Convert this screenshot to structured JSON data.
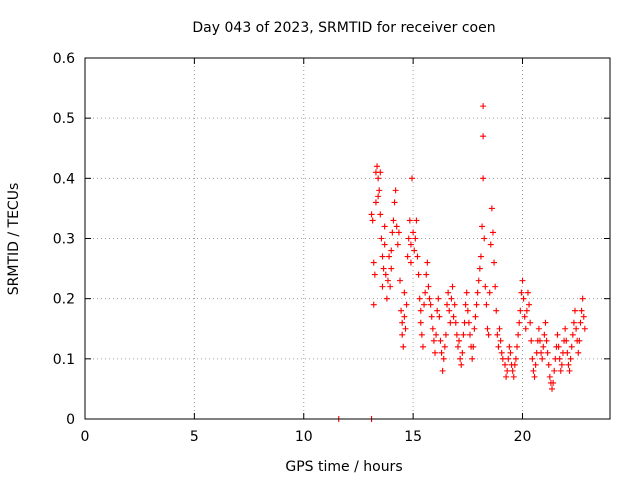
{
  "chart_data": {
    "type": "scatter",
    "title": "Day 043 of 2023, SRMTID for receiver coen",
    "xlabel": "GPS time / hours",
    "ylabel": "SRMTID / TECUs",
    "xlim": [
      0,
      24
    ],
    "ylim": [
      0,
      0.6
    ],
    "xticks": [
      0,
      5,
      10,
      15,
      20
    ],
    "xtick_labels": [
      "0",
      "5",
      "10",
      "15",
      "20"
    ],
    "yticks": [
      0,
      0.1,
      0.2,
      0.3,
      0.4,
      0.5,
      0.6
    ],
    "ytick_labels": [
      "0",
      "0.1",
      "0.2",
      "0.3",
      "0.4",
      "0.5",
      "0.6"
    ],
    "grid": true,
    "marker": "+",
    "series": [
      {
        "name": "SRMTID",
        "color": "#ff0000",
        "points": [
          [
            11.6,
            0.0
          ],
          [
            13.1,
            0.0
          ],
          [
            13.1,
            0.34
          ],
          [
            13.15,
            0.33
          ],
          [
            13.2,
            0.26
          ],
          [
            13.2,
            0.19
          ],
          [
            13.25,
            0.24
          ],
          [
            13.3,
            0.36
          ],
          [
            13.3,
            0.41
          ],
          [
            13.35,
            0.42
          ],
          [
            13.4,
            0.4
          ],
          [
            13.4,
            0.37
          ],
          [
            13.45,
            0.38
          ],
          [
            13.5,
            0.41
          ],
          [
            13.5,
            0.34
          ],
          [
            13.55,
            0.3
          ],
          [
            13.6,
            0.27
          ],
          [
            13.6,
            0.22
          ],
          [
            13.65,
            0.25
          ],
          [
            13.7,
            0.29
          ],
          [
            13.7,
            0.32
          ],
          [
            13.75,
            0.24
          ],
          [
            13.8,
            0.2
          ],
          [
            13.85,
            0.23
          ],
          [
            13.9,
            0.27
          ],
          [
            13.95,
            0.22
          ],
          [
            14.0,
            0.28
          ],
          [
            14.0,
            0.25
          ],
          [
            14.05,
            0.31
          ],
          [
            14.1,
            0.33
          ],
          [
            14.15,
            0.36
          ],
          [
            14.2,
            0.38
          ],
          [
            14.25,
            0.32
          ],
          [
            14.3,
            0.29
          ],
          [
            14.35,
            0.31
          ],
          [
            14.4,
            0.23
          ],
          [
            14.45,
            0.18
          ],
          [
            14.5,
            0.16
          ],
          [
            14.5,
            0.14
          ],
          [
            14.55,
            0.12
          ],
          [
            14.6,
            0.17
          ],
          [
            14.6,
            0.21
          ],
          [
            14.65,
            0.15
          ],
          [
            14.7,
            0.19
          ],
          [
            14.75,
            0.27
          ],
          [
            14.8,
            0.3
          ],
          [
            14.85,
            0.33
          ],
          [
            14.9,
            0.29
          ],
          [
            14.9,
            0.26
          ],
          [
            14.95,
            0.4
          ],
          [
            15.0,
            0.31
          ],
          [
            15.05,
            0.28
          ],
          [
            15.1,
            0.3
          ],
          [
            15.15,
            0.33
          ],
          [
            15.2,
            0.27
          ],
          [
            15.25,
            0.24
          ],
          [
            15.3,
            0.2
          ],
          [
            15.35,
            0.18
          ],
          [
            15.35,
            0.16
          ],
          [
            15.4,
            0.14
          ],
          [
            15.45,
            0.12
          ],
          [
            15.5,
            0.19
          ],
          [
            15.55,
            0.21
          ],
          [
            15.6,
            0.24
          ],
          [
            15.65,
            0.26
          ],
          [
            15.7,
            0.22
          ],
          [
            15.75,
            0.2
          ],
          [
            15.8,
            0.19
          ],
          [
            15.85,
            0.17
          ],
          [
            15.9,
            0.15
          ],
          [
            15.95,
            0.13
          ],
          [
            16.0,
            0.11
          ],
          [
            16.05,
            0.14
          ],
          [
            16.1,
            0.18
          ],
          [
            16.15,
            0.2
          ],
          [
            16.2,
            0.17
          ],
          [
            16.25,
            0.13
          ],
          [
            16.3,
            0.11
          ],
          [
            16.35,
            0.08
          ],
          [
            16.4,
            0.1
          ],
          [
            16.45,
            0.12
          ],
          [
            16.5,
            0.14
          ],
          [
            16.55,
            0.19
          ],
          [
            16.6,
            0.21
          ],
          [
            16.65,
            0.18
          ],
          [
            16.7,
            0.16
          ],
          [
            16.75,
            0.2
          ],
          [
            16.8,
            0.22
          ],
          [
            16.85,
            0.17
          ],
          [
            16.9,
            0.19
          ],
          [
            16.95,
            0.16
          ],
          [
            17.0,
            0.14
          ],
          [
            17.05,
            0.12
          ],
          [
            17.1,
            0.13
          ],
          [
            17.15,
            0.1
          ],
          [
            17.2,
            0.09
          ],
          [
            17.25,
            0.11
          ],
          [
            17.3,
            0.14
          ],
          [
            17.35,
            0.16
          ],
          [
            17.4,
            0.19
          ],
          [
            17.45,
            0.21
          ],
          [
            17.5,
            0.18
          ],
          [
            17.55,
            0.16
          ],
          [
            17.6,
            0.14
          ],
          [
            17.65,
            0.12
          ],
          [
            17.7,
            0.1
          ],
          [
            17.75,
            0.12
          ],
          [
            17.8,
            0.15
          ],
          [
            17.85,
            0.17
          ],
          [
            17.9,
            0.19
          ],
          [
            17.95,
            0.21
          ],
          [
            18.0,
            0.23
          ],
          [
            18.05,
            0.25
          ],
          [
            18.1,
            0.27
          ],
          [
            18.15,
            0.32
          ],
          [
            18.2,
            0.4
          ],
          [
            18.2,
            0.47
          ],
          [
            18.2,
            0.52
          ],
          [
            18.25,
            0.3
          ],
          [
            18.3,
            0.22
          ],
          [
            18.35,
            0.19
          ],
          [
            18.4,
            0.15
          ],
          [
            18.45,
            0.14
          ],
          [
            18.5,
            0.21
          ],
          [
            18.55,
            0.29
          ],
          [
            18.6,
            0.35
          ],
          [
            18.65,
            0.31
          ],
          [
            18.7,
            0.26
          ],
          [
            18.75,
            0.22
          ],
          [
            18.8,
            0.18
          ],
          [
            18.85,
            0.14
          ],
          [
            18.9,
            0.12
          ],
          [
            18.95,
            0.15
          ],
          [
            19.0,
            0.13
          ],
          [
            19.05,
            0.11
          ],
          [
            19.1,
            0.1
          ],
          [
            19.2,
            0.09
          ],
          [
            19.25,
            0.07
          ],
          [
            19.3,
            0.08
          ],
          [
            19.35,
            0.1
          ],
          [
            19.4,
            0.12
          ],
          [
            19.45,
            0.11
          ],
          [
            19.5,
            0.09
          ],
          [
            19.55,
            0.08
          ],
          [
            19.6,
            0.07
          ],
          [
            19.65,
            0.09
          ],
          [
            19.7,
            0.1
          ],
          [
            19.75,
            0.12
          ],
          [
            19.8,
            0.14
          ],
          [
            19.85,
            0.16
          ],
          [
            19.9,
            0.18
          ],
          [
            19.95,
            0.21
          ],
          [
            20.0,
            0.23
          ],
          [
            20.05,
            0.2
          ],
          [
            20.1,
            0.17
          ],
          [
            20.15,
            0.15
          ],
          [
            20.2,
            0.18
          ],
          [
            20.25,
            0.21
          ],
          [
            20.3,
            0.19
          ],
          [
            20.35,
            0.16
          ],
          [
            20.4,
            0.13
          ],
          [
            20.45,
            0.1
          ],
          [
            20.5,
            0.08
          ],
          [
            20.55,
            0.07
          ],
          [
            20.6,
            0.09
          ],
          [
            20.65,
            0.11
          ],
          [
            20.7,
            0.13
          ],
          [
            20.75,
            0.15
          ],
          [
            20.8,
            0.13
          ],
          [
            20.85,
            0.11
          ],
          [
            20.9,
            0.1
          ],
          [
            20.95,
            0.12
          ],
          [
            21.0,
            0.14
          ],
          [
            21.05,
            0.16
          ],
          [
            21.1,
            0.13
          ],
          [
            21.15,
            0.11
          ],
          [
            21.2,
            0.09
          ],
          [
            21.25,
            0.07
          ],
          [
            21.3,
            0.06
          ],
          [
            21.35,
            0.05
          ],
          [
            21.4,
            0.06
          ],
          [
            21.45,
            0.08
          ],
          [
            21.5,
            0.1
          ],
          [
            21.55,
            0.12
          ],
          [
            21.6,
            0.14
          ],
          [
            21.65,
            0.12
          ],
          [
            21.7,
            0.1
          ],
          [
            21.75,
            0.08
          ],
          [
            21.8,
            0.09
          ],
          [
            21.85,
            0.11
          ],
          [
            21.9,
            0.13
          ],
          [
            21.95,
            0.15
          ],
          [
            22.0,
            0.13
          ],
          [
            22.05,
            0.11
          ],
          [
            22.1,
            0.09
          ],
          [
            22.15,
            0.08
          ],
          [
            22.2,
            0.1
          ],
          [
            22.25,
            0.12
          ],
          [
            22.3,
            0.14
          ],
          [
            22.35,
            0.16
          ],
          [
            22.4,
            0.18
          ],
          [
            22.45,
            0.15
          ],
          [
            22.5,
            0.13
          ],
          [
            22.55,
            0.11
          ],
          [
            22.6,
            0.13
          ],
          [
            22.65,
            0.16
          ],
          [
            22.7,
            0.18
          ],
          [
            22.75,
            0.2
          ],
          [
            22.8,
            0.17
          ],
          [
            22.85,
            0.15
          ]
        ]
      }
    ]
  }
}
